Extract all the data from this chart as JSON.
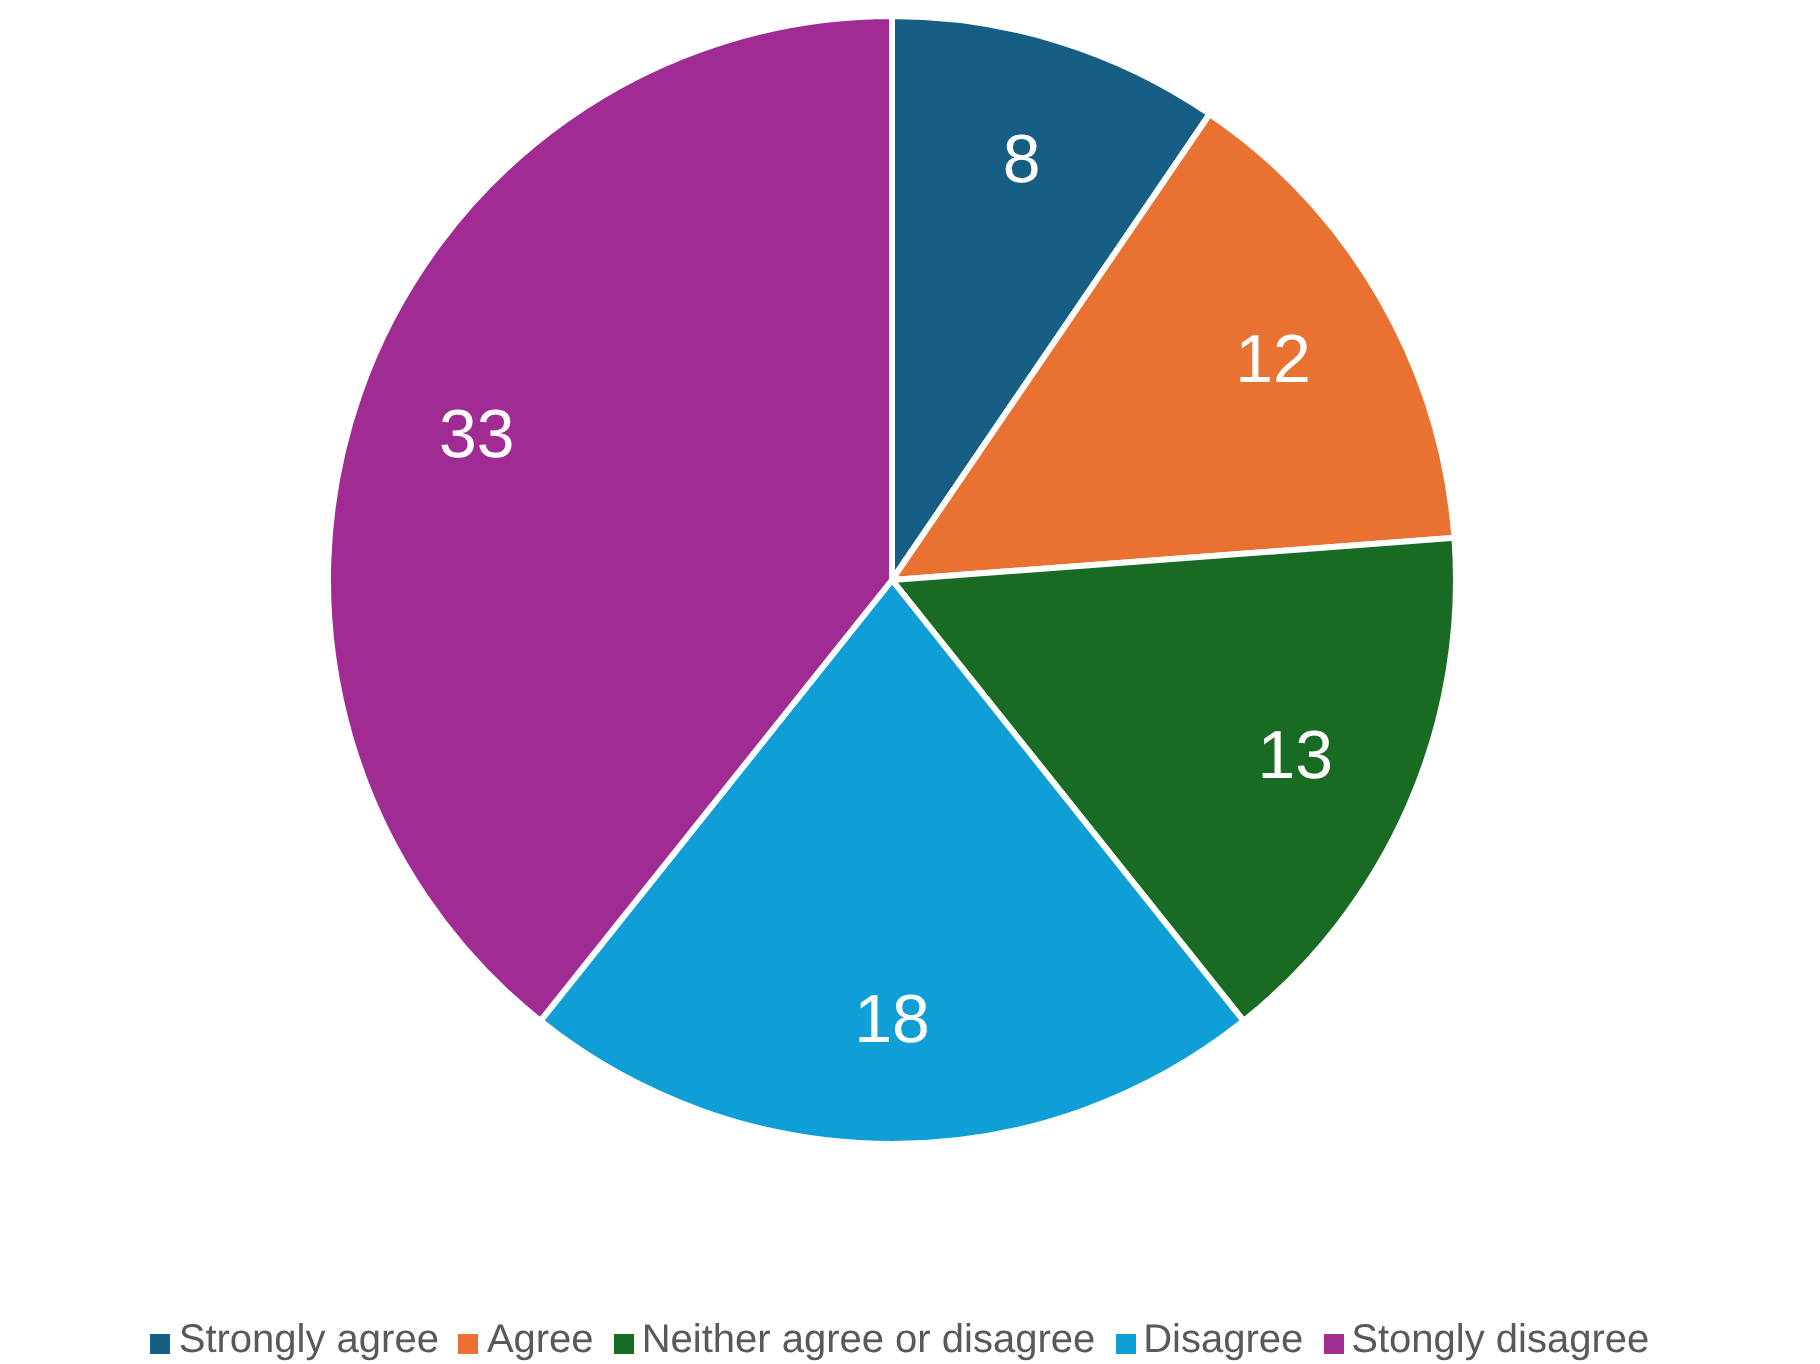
{
  "chart_data": {
    "type": "pie",
    "categories": [
      "Strongly agree",
      "Agree",
      "Neither agree or disagree",
      "Disagree",
      "Stongly disagree"
    ],
    "values": [
      8,
      12,
      13,
      18,
      33
    ],
    "colors": [
      "#165e83",
      "#e97132",
      "#196b24",
      "#0f9ed5",
      "#a02b93"
    ],
    "data_labels": true,
    "legend": "bottom"
  }
}
